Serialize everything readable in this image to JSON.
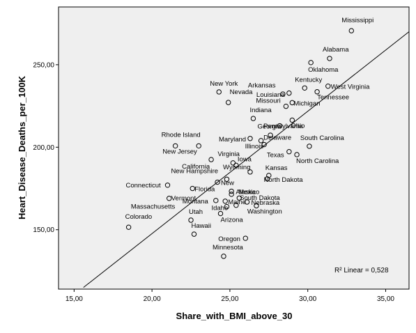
{
  "chart_data": {
    "type": "scatter",
    "xlabel": "Share_with_BMI_above_30",
    "ylabel": "Heart_Disease_Deaths_per_100K",
    "xlim": [
      14,
      36.5
    ],
    "ylim": [
      114,
      285
    ],
    "x_ticks": [
      {
        "value": 15,
        "label": "15,00"
      },
      {
        "value": 20,
        "label": "20,00"
      },
      {
        "value": 25,
        "label": "25,00"
      },
      {
        "value": 30,
        "label": "30,00"
      },
      {
        "value": 35,
        "label": "35,00"
      }
    ],
    "y_ticks": [
      {
        "value": 150,
        "label": "150,00"
      },
      {
        "value": 200,
        "label": "200,00"
      },
      {
        "value": 250,
        "label": "250,00"
      }
    ],
    "fit_line": {
      "x1": 15.6,
      "y1": 115,
      "x2": 36.5,
      "y2": 270
    },
    "annotation": "R² Linear = 0,528",
    "grid": false,
    "plot_background": "#efefef",
    "points": [
      {
        "label": "Mississippi",
        "x": 32.8,
        "y": 270.6
      },
      {
        "label": "Alabama",
        "x": 31.4,
        "y": 253.8
      },
      {
        "label": "Oklahoma",
        "x": 30.2,
        "y": 251.3
      },
      {
        "label": "Kentucky",
        "x": 29.8,
        "y": 235.9
      },
      {
        "label": "West Virginia",
        "x": 31.3,
        "y": 237.0
      },
      {
        "label": "Tennessee",
        "x": 30.6,
        "y": 233.6
      },
      {
        "label": "Arkansas",
        "x": 28.8,
        "y": 232.8
      },
      {
        "label": "Louisiana",
        "x": 28.4,
        "y": 232.2
      },
      {
        "label": "New York",
        "x": 24.3,
        "y": 233.5
      },
      {
        "label": "Nevada",
        "x": 24.9,
        "y": 227.1
      },
      {
        "label": "Missouri",
        "x": 28.6,
        "y": 224.8
      },
      {
        "label": "Michigan",
        "x": 29.0,
        "y": 227.0
      },
      {
        "label": "Indiana",
        "x": 26.5,
        "y": 217.4
      },
      {
        "label": "Ohio",
        "x": 29.0,
        "y": 216.4
      },
      {
        "label": "Georgia",
        "x": 28.2,
        "y": 213.0
      },
      {
        "label": "Pennsylvania",
        "x": 27.6,
        "y": 207.3
      },
      {
        "label": "Maryland",
        "x": 26.3,
        "y": 205.3
      },
      {
        "label": "Illinois",
        "x": 27.0,
        "y": 204.0
      },
      {
        "label": "Delaware",
        "x": 27.2,
        "y": 201.6
      },
      {
        "label": "South Carolina",
        "x": 30.1,
        "y": 200.6
      },
      {
        "label": "Rhode Island",
        "x": 21.5,
        "y": 200.8
      },
      {
        "label": "New Jersey",
        "x": 23.0,
        "y": 200.8
      },
      {
        "label": "North Carolina",
        "x": 29.3,
        "y": 195.5
      },
      {
        "label": "Texas",
        "x": 28.8,
        "y": 197.3
      },
      {
        "label": "Virginia",
        "x": 25.2,
        "y": 190.5
      },
      {
        "label": "California",
        "x": 23.8,
        "y": 192.5
      },
      {
        "label": "Iowa",
        "x": 25.4,
        "y": 189.0
      },
      {
        "label": "Wyoming",
        "x": 26.3,
        "y": 185.0
      },
      {
        "label": "Kansas",
        "x": 27.5,
        "y": 182.9
      },
      {
        "label": "North Dakota",
        "x": 27.4,
        "y": 180.8
      },
      {
        "label": "New Hampshire",
        "x": 24.8,
        "y": 180.6
      },
      {
        "label": "New",
        "x": 24.2,
        "y": 178.8
      },
      {
        "label": "Connecticut",
        "x": 21.0,
        "y": 177.0
      },
      {
        "label": "Florida",
        "x": 22.6,
        "y": 175.0
      },
      {
        "label": "Mexico",
        "x": 25.1,
        "y": 173.3
      },
      {
        "label": "South Dakota",
        "x": 25.1,
        "y": 171.5
      },
      {
        "label": "Vermont",
        "x": 21.1,
        "y": 169.0
      },
      {
        "label": "Alaska",
        "x": 25.6,
        "y": 169.2
      },
      {
        "label": "Montana",
        "x": 24.1,
        "y": 167.7
      },
      {
        "label": "Maine",
        "x": 24.7,
        "y": 167.3
      },
      {
        "label": "Nebraska",
        "x": 26.1,
        "y": 166.8
      },
      {
        "label": "Idaho",
        "x": 24.8,
        "y": 164.0
      },
      {
        "label": "Massachusetts",
        "x": 25.4,
        "y": 164.8
      },
      {
        "label": "Washington",
        "x": 26.7,
        "y": 164.5
      },
      {
        "label": "Arizona",
        "x": 24.4,
        "y": 159.8
      },
      {
        "label": "Utah",
        "x": 22.5,
        "y": 155.8
      },
      {
        "label": "Colorado",
        "x": 18.5,
        "y": 151.5
      },
      {
        "label": "Hawaii",
        "x": 22.7,
        "y": 147.3
      },
      {
        "label": "Oregon",
        "x": 26.0,
        "y": 144.8
      },
      {
        "label": "Minnesota",
        "x": 24.6,
        "y": 133.9
      }
    ],
    "label_offsets_note": ""
  }
}
